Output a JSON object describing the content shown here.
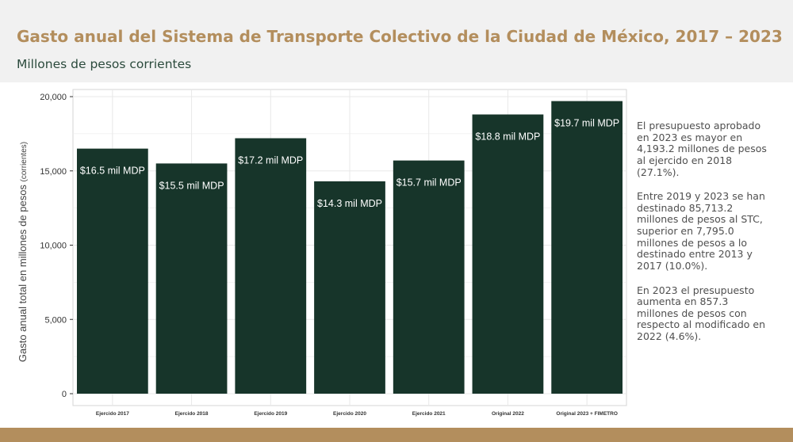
{
  "header": {
    "title": "Gasto anual del Sistema de Transporte Colectivo de la Ciudad de México, 2017 – 2023",
    "subtitle": "Millones de pesos corrientes"
  },
  "colors": {
    "bar": "#17352a",
    "title": "#b38e5d",
    "accent_bar": "#b38e5d",
    "grid": "#e8e8e8"
  },
  "chart_data": {
    "type": "bar",
    "categories": [
      "Ejercido 2017",
      "Ejercido 2018",
      "Ejercido 2019",
      "Ejercido 2020",
      "Ejercido 2021",
      "Original 2022",
      "Original 2023 + FIMETRO"
    ],
    "values": [
      16500,
      15500,
      17200,
      14300,
      15700,
      18800,
      19700
    ],
    "data_labels": [
      "$16.5 mil MDP",
      "$15.5 mil MDP",
      "$17.2 mil MDP",
      "$14.3 mil MDP",
      "$15.7 mil MDP",
      "$18.8 mil MDP",
      "$19.7 mil MDP"
    ],
    "ylabel": "Gasto anual total en millones de pesos",
    "ylabel_suffix": "(corrientes)",
    "xlabel": "",
    "ylim": [
      0,
      20000
    ],
    "yticks": [
      0,
      5000,
      10000,
      15000,
      20000
    ],
    "ytick_labels": [
      "0",
      "5,000",
      "10,000",
      "15,000",
      "20,000"
    ],
    "grid": true,
    "legend": "none"
  },
  "notes": [
    "El presupuesto aprobado en 2023 es mayor en 4,193.2 millones de pesos al ejercido en 2018 (27.1%).",
    "Entre 2019 y 2023 se han destinado 85,713.2 millones de pesos al STC, superior en 7,795.0 millones de pesos a lo destinado entre 2013 y 2017 (10.0%).",
    "En 2023 el presupuesto aumenta en 857.3 millones de pesos con respecto al modificado en 2022 (4.6%)."
  ]
}
